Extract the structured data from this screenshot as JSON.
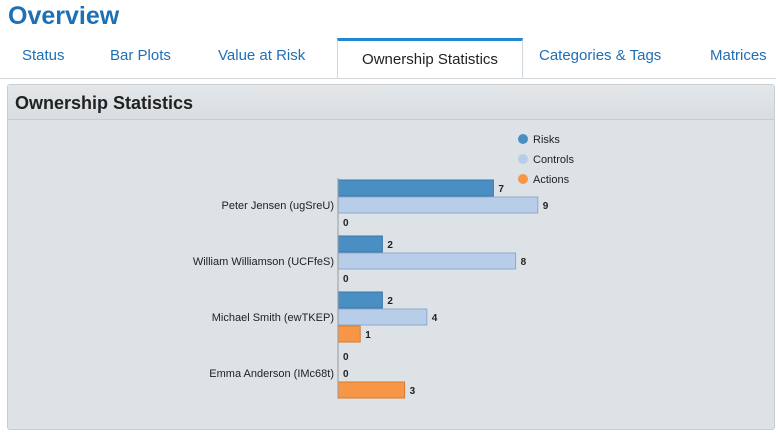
{
  "page": {
    "title": "Overview"
  },
  "tabs": [
    {
      "label": "Status",
      "active": false
    },
    {
      "label": "Bar Plots",
      "active": false
    },
    {
      "label": "Value at Risk",
      "active": false
    },
    {
      "label": "Ownership Statistics",
      "active": true
    },
    {
      "label": "Categories & Tags",
      "active": false
    },
    {
      "label": "Matrices",
      "active": false
    }
  ],
  "panel": {
    "title": "Ownership Statistics"
  },
  "colors": {
    "accent": "#1f6fb5",
    "risks": "#4a8fc4",
    "controls": "#b8cde8",
    "actions": "#f79646"
  },
  "chart_data": {
    "type": "bar",
    "orientation": "horizontal",
    "categories": [
      "Peter Jensen (ugSreU)",
      "William Williamson (UCFfeS)",
      "Michael Smith (ewTKEP)",
      "Emma Anderson (IMc68t)"
    ],
    "series": [
      {
        "name": "Risks",
        "values": [
          7,
          2,
          2,
          0
        ]
      },
      {
        "name": "Controls",
        "values": [
          9,
          8,
          4,
          0
        ]
      },
      {
        "name": "Actions",
        "values": [
          0,
          0,
          1,
          3
        ]
      }
    ],
    "legend_position": "top-right",
    "data_labels": true,
    "grid": false
  }
}
